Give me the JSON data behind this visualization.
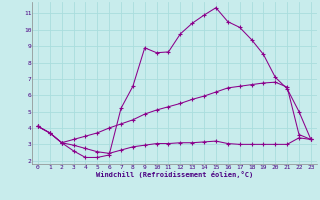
{
  "xlabel": "Windchill (Refroidissement éolien,°C)",
  "background_color": "#c8ecec",
  "line_color": "#8b008b",
  "grid_color": "#aadddd",
  "xlim": [
    -0.5,
    23.5
  ],
  "ylim": [
    1.8,
    11.7
  ],
  "x_ticks": [
    0,
    1,
    2,
    3,
    4,
    5,
    6,
    7,
    8,
    9,
    10,
    11,
    12,
    13,
    14,
    15,
    16,
    17,
    18,
    19,
    20,
    21,
    22,
    23
  ],
  "y_ticks": [
    2,
    3,
    4,
    5,
    6,
    7,
    8,
    9,
    10,
    11
  ],
  "line1_x": [
    0,
    1,
    2,
    3,
    4,
    5,
    6,
    7,
    8,
    9,
    10,
    11,
    12,
    13,
    14,
    15,
    16,
    17,
    18,
    19,
    20,
    21,
    22,
    23
  ],
  "line1_y": [
    4.1,
    3.7,
    3.1,
    2.6,
    2.2,
    2.2,
    2.35,
    5.2,
    6.55,
    8.9,
    8.6,
    8.65,
    9.75,
    10.4,
    10.9,
    11.35,
    10.5,
    10.15,
    9.4,
    8.5,
    7.1,
    6.4,
    5.0,
    3.3
  ],
  "line2_x": [
    0,
    1,
    2,
    3,
    4,
    5,
    6,
    7,
    8,
    9,
    10,
    11,
    12,
    13,
    14,
    15,
    16,
    17,
    18,
    19,
    20,
    21,
    22,
    23
  ],
  "line2_y": [
    4.1,
    3.7,
    3.1,
    3.3,
    3.5,
    3.7,
    4.0,
    4.25,
    4.5,
    4.85,
    5.1,
    5.3,
    5.5,
    5.75,
    5.95,
    6.2,
    6.45,
    6.55,
    6.65,
    6.75,
    6.8,
    6.5,
    3.6,
    3.3
  ],
  "line3_x": [
    0,
    1,
    2,
    3,
    4,
    5,
    6,
    7,
    8,
    9,
    10,
    11,
    12,
    13,
    14,
    15,
    16,
    17,
    18,
    19,
    20,
    21,
    22,
    23
  ],
  "line3_y": [
    4.1,
    3.7,
    3.1,
    2.95,
    2.75,
    2.55,
    2.45,
    2.65,
    2.85,
    2.95,
    3.05,
    3.05,
    3.1,
    3.1,
    3.15,
    3.2,
    3.05,
    3.0,
    3.0,
    3.0,
    3.0,
    3.0,
    3.4,
    3.3
  ]
}
